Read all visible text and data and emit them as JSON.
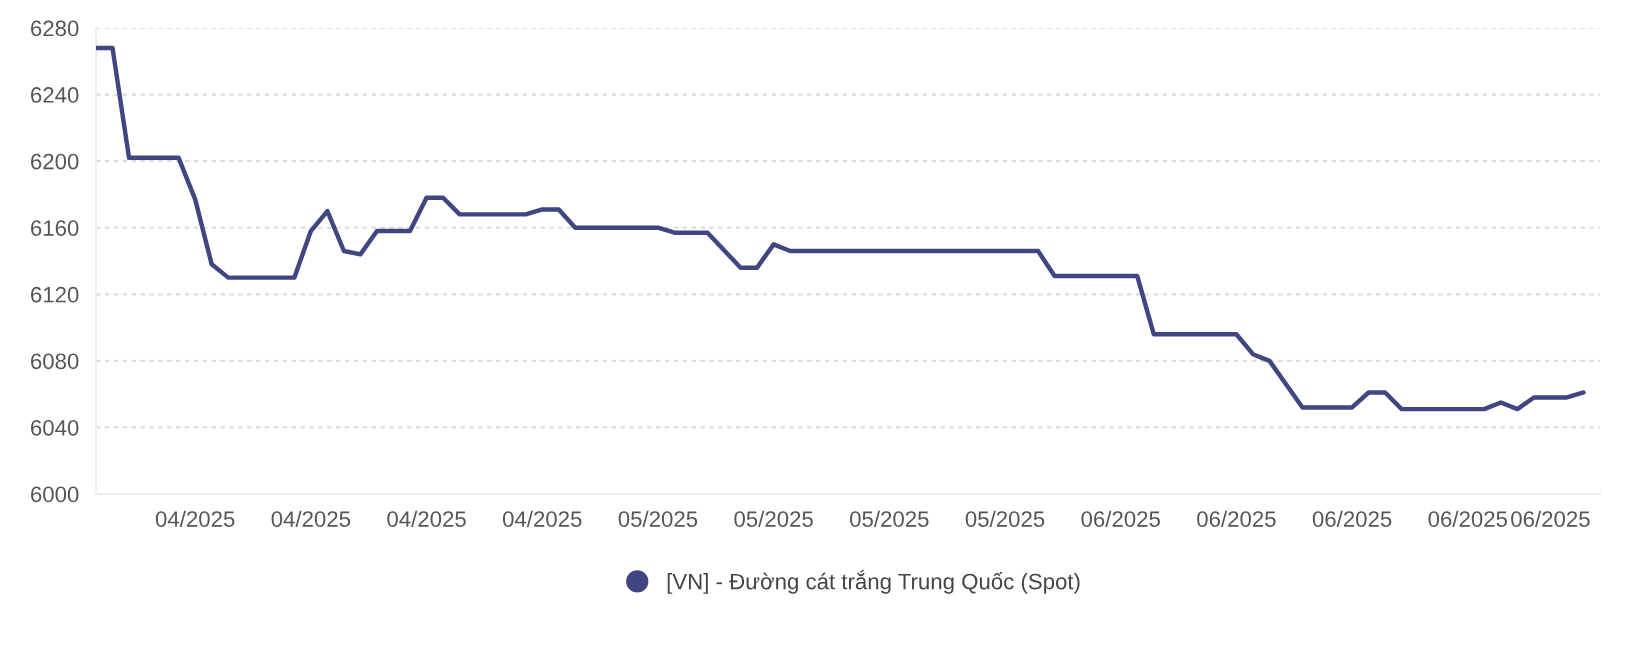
{
  "chart_data": {
    "type": "line",
    "x": [
      "2025-03-31",
      "2025-04-01",
      "2025-04-02",
      "2025-04-05",
      "2025-04-06",
      "2025-04-07",
      "2025-04-08",
      "2025-04-12",
      "2025-04-13",
      "2025-04-14",
      "2025-04-15",
      "2025-04-16",
      "2025-04-17",
      "2025-04-19",
      "2025-04-20",
      "2025-04-21",
      "2025-04-22",
      "2025-04-26",
      "2025-04-27",
      "2025-04-28",
      "2025-04-29",
      "2025-05-04",
      "2025-05-05",
      "2025-05-07",
      "2025-05-09",
      "2025-05-10",
      "2025-05-11",
      "2025-05-12",
      "2025-05-27",
      "2025-05-28",
      "2025-06-02",
      "2025-06-03",
      "2025-06-08",
      "2025-06-09",
      "2025-06-10",
      "2025-06-12",
      "2025-06-15",
      "2025-06-16",
      "2025-06-17",
      "2025-06-18",
      "2025-06-23",
      "2025-06-24",
      "2025-06-25",
      "2025-06-26",
      "2025-06-28",
      "2025-06-29"
    ],
    "series": [
      {
        "name": "[VN] - Đường cát trắng Trung Quốc (Spot)",
        "color": "#404682",
        "values": [
          6268,
          6268,
          6202,
          6202,
          6177,
          6138,
          6130,
          6130,
          6158,
          6170,
          6146,
          6144,
          6158,
          6158,
          6178,
          6178,
          6168,
          6168,
          6171,
          6171,
          6160,
          6160,
          6157,
          6157,
          6136,
          6136,
          6150,
          6146,
          6146,
          6131,
          6131,
          6096,
          6096,
          6084,
          6080,
          6052,
          6052,
          6061,
          6061,
          6051,
          6051,
          6055,
          6051,
          6058,
          6058,
          6061
        ]
      }
    ],
    "xlim": [
      "2025-03-31",
      "2025-06-30"
    ],
    "xticks": [
      {
        "value": "2025-04-06",
        "label": "04/2025"
      },
      {
        "value": "2025-04-13",
        "label": "04/2025"
      },
      {
        "value": "2025-04-20",
        "label": "04/2025"
      },
      {
        "value": "2025-04-27",
        "label": "04/2025"
      },
      {
        "value": "2025-05-04",
        "label": "05/2025"
      },
      {
        "value": "2025-05-11",
        "label": "05/2025"
      },
      {
        "value": "2025-05-18",
        "label": "05/2025"
      },
      {
        "value": "2025-05-25",
        "label": "05/2025"
      },
      {
        "value": "2025-06-01",
        "label": "06/2025"
      },
      {
        "value": "2025-06-08",
        "label": "06/2025"
      },
      {
        "value": "2025-06-15",
        "label": "06/2025"
      },
      {
        "value": "2025-06-22",
        "label": "06/2025"
      },
      {
        "value": "2025-06-27",
        "label": "06/2025"
      }
    ],
    "ylim": [
      6000,
      6280
    ],
    "yticks": [
      6000,
      6040,
      6080,
      6120,
      6160,
      6200,
      6240,
      6280
    ],
    "grid": "y",
    "legend": "bottom",
    "marker": "none",
    "line_style": "solid"
  }
}
